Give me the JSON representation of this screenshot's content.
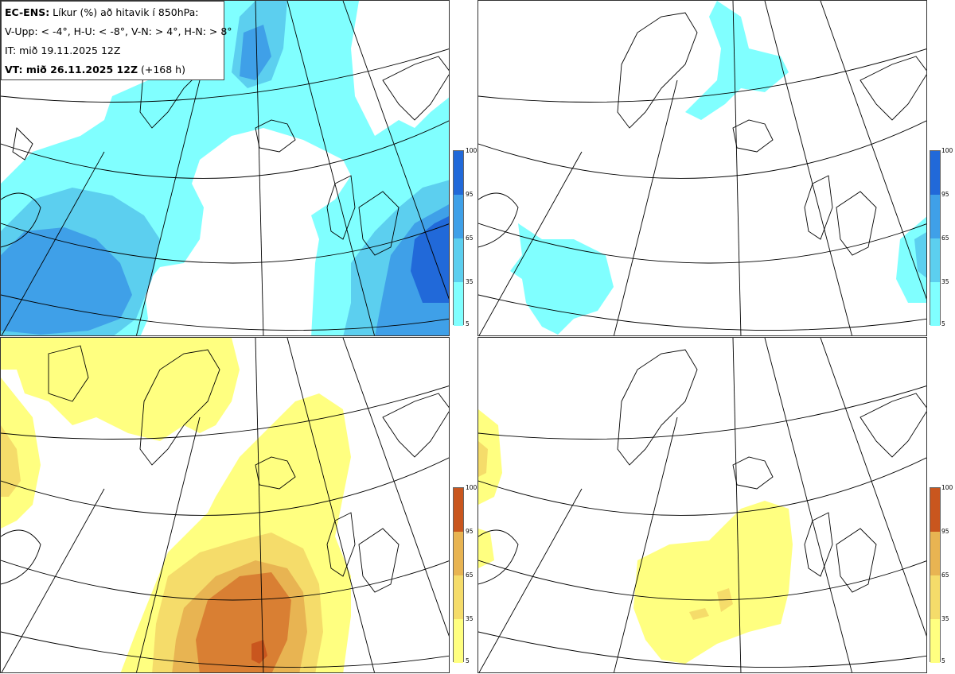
{
  "infobox": {
    "line1_bold": "EC-ENS:",
    "line1_rest": " Líkur (%) að hitavik í 850hPa:",
    "line2": "V-Upp: < -4°, H-U: < -8°, V-N: > 4°, H-N: > 8°",
    "line3": "IT: mið 19.11.2025 12Z",
    "line4_bold": "VT: mið 26.11.2025 12Z",
    "line4_rest": " (+168 h)"
  },
  "colorbar_ticks": [
    "100",
    "95",
    "65",
    "35",
    "5"
  ],
  "colors": {
    "cold": [
      "#80ffff",
      "#5ccfef",
      "#3fa0e8",
      "#2169d9"
    ],
    "warm": [
      "#ffff80",
      "#f5dc6a",
      "#e8b452",
      "#d97f33",
      "#c9561e"
    ]
  },
  "panels": [
    {
      "name": "V-Upp",
      "scheme": "cold"
    },
    {
      "name": "H-U",
      "scheme": "cold"
    },
    {
      "name": "V-N",
      "scheme": "warm"
    },
    {
      "name": "H-N",
      "scheme": "warm"
    }
  ]
}
